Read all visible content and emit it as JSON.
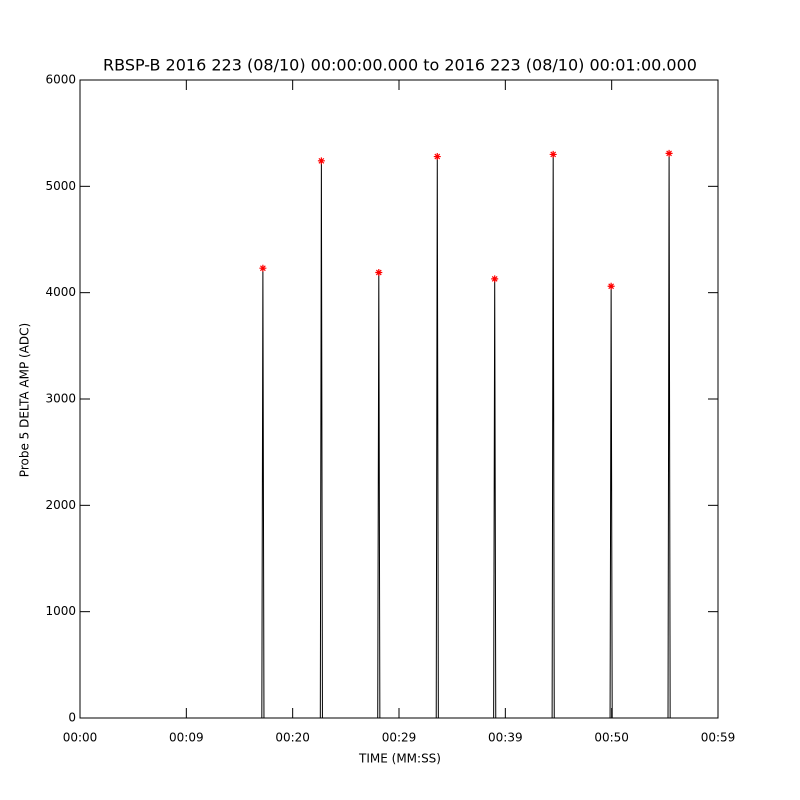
{
  "chart_data": {
    "type": "line",
    "title": "RBSP-B 2016 223 (08/10) 00:00:00.000 to 2016 223 (08/10) 00:01:00.000",
    "x_label": "TIME (MM:SS)",
    "y_label": "Probe 5 DELTA AMP (ADC)",
    "xlim": [
      0,
      60
    ],
    "ylim": [
      0,
      6000
    ],
    "xticks": [
      {
        "value": 0,
        "label": "00:00"
      },
      {
        "value": 10,
        "label": "00:09"
      },
      {
        "value": 20,
        "label": "00:20"
      },
      {
        "value": 30,
        "label": "00:29"
      },
      {
        "value": 40,
        "label": "00:39"
      },
      {
        "value": 50,
        "label": "00:50"
      },
      {
        "value": 60,
        "label": "00:59"
      }
    ],
    "yticks": [
      0,
      1000,
      2000,
      3000,
      4000,
      5000,
      6000
    ],
    "line": {
      "color": "#000000",
      "x": [
        0,
        17.1,
        17.2,
        17.3,
        22.6,
        22.7,
        22.8,
        28.0,
        28.1,
        28.2,
        33.5,
        33.6,
        33.7,
        38.9,
        39.0,
        39.1,
        44.4,
        44.5,
        44.6,
        49.85,
        49.95,
        50.05,
        55.3,
        55.4,
        55.5,
        60
      ],
      "values": [
        0,
        0,
        4230,
        0,
        0,
        5240,
        0,
        0,
        4190,
        0,
        0,
        5280,
        0,
        0,
        4130,
        0,
        0,
        5300,
        0,
        0,
        4060,
        0,
        0,
        5310,
        0,
        0
      ]
    },
    "peaks": {
      "color": "#ff0000",
      "x": [
        17.2,
        22.7,
        28.1,
        33.6,
        39.0,
        44.5,
        49.95,
        55.4
      ],
      "values": [
        4230,
        5240,
        4190,
        5280,
        4130,
        5300,
        4060,
        5310
      ]
    }
  }
}
